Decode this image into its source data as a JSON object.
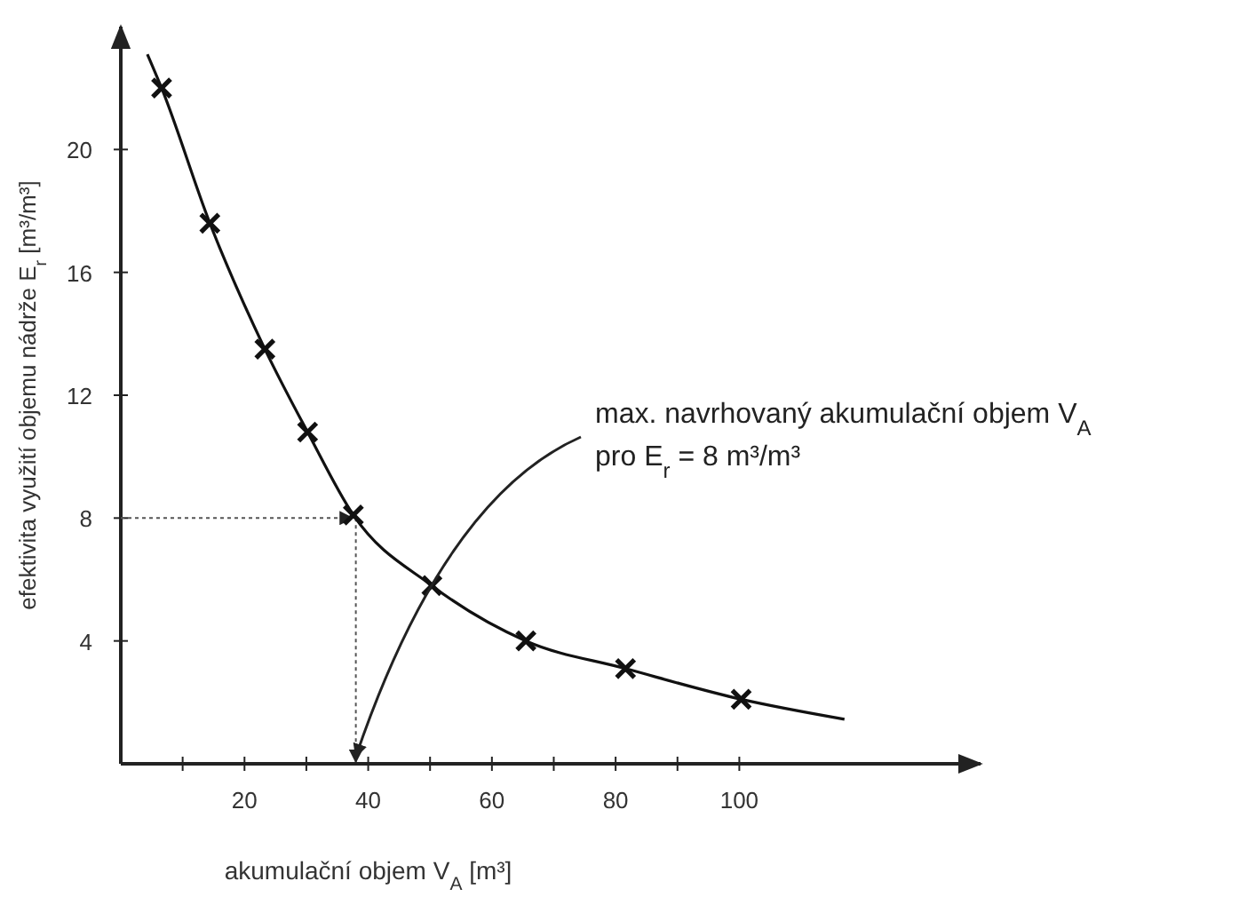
{
  "chart_data": {
    "type": "scatter",
    "xlabel": "akumulační objem V$_{A}$ [m³]",
    "ylabel": "efektivita využití objemu nádrže E$_{r}$ [m³/m³]",
    "xlim": [
      0,
      139
    ],
    "ylim": [
      0,
      24
    ],
    "xticks": [
      {
        "value": 10,
        "label": null
      },
      20,
      {
        "value": 30,
        "label": null
      },
      40,
      {
        "value": 50,
        "label": null
      },
      60,
      {
        "value": 70,
        "label": null
      },
      80,
      {
        "value": 90,
        "label": null
      },
      100
    ],
    "yticks": [
      4,
      8,
      12,
      16,
      20
    ],
    "grid": false,
    "series": [
      {
        "color": "#111111",
        "marker": "cross",
        "x": [
          6.6,
          14.4,
          23.3,
          30.2,
          37.6,
          50.3,
          65.5,
          81.6,
          100.3
        ],
        "values": [
          22.0,
          17.6,
          13.5,
          10.8,
          8.1,
          5.8,
          4.0,
          3.1,
          2.1
        ]
      },
      {
        "type": "line",
        "color": "#111111",
        "marker": "none",
        "line_style": "solid",
        "x": [
          4.3,
          6.6,
          14.4,
          23.3,
          30.2,
          37.6,
          50.3,
          65.5,
          81.6,
          100.3,
          117
        ],
        "values": [
          23.1,
          22.0,
          17.6,
          13.5,
          10.8,
          8.1,
          5.8,
          4.0,
          3.1,
          2.1,
          1.45
        ]
      }
    ],
    "ref_lines": [
      {
        "axis": "y",
        "value": 8,
        "line_style": "dotted",
        "color": "#555555"
      },
      {
        "axis": "x",
        "value": 38,
        "line_style": "dotted",
        "color": "#555555"
      }
    ],
    "annotations": [
      "max. navrhovaný akumulační objem V$_{A}$",
      "pro E$_{r}$ = 8 m³/m³"
    ]
  }
}
